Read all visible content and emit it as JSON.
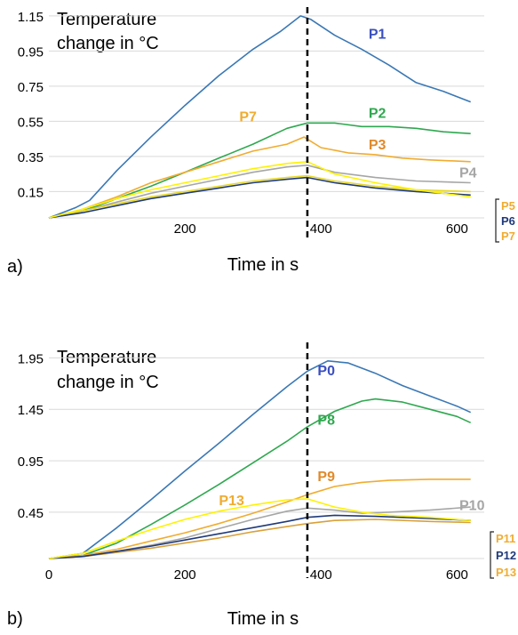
{
  "chart_data": [
    {
      "panel_label": "a)",
      "type": "line",
      "ylabel_lines": [
        "Temperature",
        "change in °C"
      ],
      "xlabel": "Time in s",
      "xlim": [
        0,
        640
      ],
      "ylim": [
        0,
        1.2
      ],
      "x_ticks": [
        200,
        400,
        600
      ],
      "y_ticks": [
        0.15,
        0.35,
        0.55,
        0.75,
        0.95,
        1.15
      ],
      "y_tick_labels": [
        "0.15",
        "0.35",
        "0.55",
        "0.75",
        "0.95",
        "1.15"
      ],
      "grid": "horizontal",
      "vline_x": 380,
      "series": [
        {
          "name": "P1",
          "color": "#3a78b5",
          "points": [
            [
              0,
              0
            ],
            [
              40,
              0.06
            ],
            [
              60,
              0.1
            ],
            [
              100,
              0.27
            ],
            [
              150,
              0.46
            ],
            [
              200,
              0.64
            ],
            [
              250,
              0.81
            ],
            [
              300,
              0.96
            ],
            [
              340,
              1.06
            ],
            [
              370,
              1.15
            ],
            [
              385,
              1.13
            ],
            [
              420,
              1.04
            ],
            [
              460,
              0.96
            ],
            [
              500,
              0.87
            ],
            [
              540,
              0.77
            ],
            [
              580,
              0.72
            ],
            [
              620,
              0.66
            ]
          ]
        },
        {
          "name": "P2",
          "color": "#2fa84f",
          "points": [
            [
              0,
              0
            ],
            [
              50,
              0.04
            ],
            [
              100,
              0.11
            ],
            [
              150,
              0.18
            ],
            [
              200,
              0.26
            ],
            [
              250,
              0.34
            ],
            [
              300,
              0.42
            ],
            [
              350,
              0.51
            ],
            [
              380,
              0.54
            ],
            [
              420,
              0.54
            ],
            [
              460,
              0.52
            ],
            [
              500,
              0.52
            ],
            [
              540,
              0.51
            ],
            [
              580,
              0.49
            ],
            [
              620,
              0.48
            ]
          ]
        },
        {
          "name": "P3",
          "color": "#f0ac30",
          "points": [
            [
              0,
              0
            ],
            [
              50,
              0.05
            ],
            [
              100,
              0.12
            ],
            [
              150,
              0.2
            ],
            [
              200,
              0.26
            ],
            [
              250,
              0.32
            ],
            [
              300,
              0.38
            ],
            [
              350,
              0.42
            ],
            [
              375,
              0.46
            ],
            [
              400,
              0.4
            ],
            [
              440,
              0.37
            ],
            [
              480,
              0.36
            ],
            [
              520,
              0.34
            ],
            [
              560,
              0.33
            ],
            [
              620,
              0.32
            ]
          ]
        },
        {
          "name": "P4",
          "color": "#a6a6a6",
          "points": [
            [
              0,
              0
            ],
            [
              50,
              0.04
            ],
            [
              100,
              0.09
            ],
            [
              150,
              0.14
            ],
            [
              200,
              0.18
            ],
            [
              250,
              0.22
            ],
            [
              300,
              0.26
            ],
            [
              350,
              0.29
            ],
            [
              380,
              0.3
            ],
            [
              420,
              0.26
            ],
            [
              480,
              0.23
            ],
            [
              540,
              0.21
            ],
            [
              620,
              0.2
            ]
          ]
        },
        {
          "name": "P5",
          "color": "#e7d82a",
          "points": [
            [
              0,
              0
            ],
            [
              50,
              0.04
            ],
            [
              100,
              0.08
            ],
            [
              150,
              0.12
            ],
            [
              200,
              0.15
            ],
            [
              250,
              0.18
            ],
            [
              300,
              0.21
            ],
            [
              350,
              0.23
            ],
            [
              380,
              0.24
            ],
            [
              420,
              0.21
            ],
            [
              480,
              0.18
            ],
            [
              540,
              0.16
            ],
            [
              620,
              0.15
            ]
          ]
        },
        {
          "name": "P6",
          "color": "#1f3a7a",
          "points": [
            [
              0,
              0
            ],
            [
              50,
              0.03
            ],
            [
              100,
              0.07
            ],
            [
              150,
              0.11
            ],
            [
              200,
              0.14
            ],
            [
              250,
              0.17
            ],
            [
              300,
              0.2
            ],
            [
              350,
              0.22
            ],
            [
              380,
              0.23
            ],
            [
              420,
              0.2
            ],
            [
              480,
              0.17
            ],
            [
              540,
              0.15
            ],
            [
              620,
              0.13
            ]
          ]
        },
        {
          "name": "P7",
          "color": "#fff200",
          "points": [
            [
              0,
              0
            ],
            [
              50,
              0.05
            ],
            [
              100,
              0.11
            ],
            [
              150,
              0.16
            ],
            [
              200,
              0.2
            ],
            [
              250,
              0.24
            ],
            [
              300,
              0.28
            ],
            [
              350,
              0.31
            ],
            [
              380,
              0.32
            ],
            [
              420,
              0.25
            ],
            [
              480,
              0.2
            ],
            [
              540,
              0.16
            ],
            [
              620,
              0.12
            ]
          ]
        }
      ],
      "series_labels": [
        {
          "text": "P1",
          "color": "#3a4fc0",
          "x": 470,
          "y": 1.02
        },
        {
          "text": "P2",
          "color": "#2fa84f",
          "x": 470,
          "y": 0.57
        },
        {
          "text": "P3",
          "color": "#e08a2a",
          "x": 470,
          "y": 0.39
        },
        {
          "text": "P4",
          "color": "#a6a6a6",
          "x": 640,
          "y": 0.23
        },
        {
          "text": "P7",
          "color": "#f0ac30",
          "x": 280,
          "y": 0.55
        }
      ],
      "bracket_labels": [
        {
          "text": "P5",
          "color": "#f0ac30"
        },
        {
          "text": "P6",
          "color": "#1f3a7a"
        },
        {
          "text": "P7",
          "color": "#f0ac30"
        }
      ]
    },
    {
      "panel_label": "b)",
      "type": "line",
      "ylabel_lines": [
        "Temperature",
        "change in °C"
      ],
      "xlabel": "Time in s",
      "xlim": [
        0,
        640
      ],
      "ylim": [
        0,
        2.1
      ],
      "x_ticks": [
        0,
        200,
        400,
        600
      ],
      "y_ticks": [
        0.45,
        0.95,
        1.45,
        1.95
      ],
      "y_tick_labels": [
        "0.45",
        "0.95",
        "1.45",
        "1.95"
      ],
      "grid": "horizontal",
      "vline_x": 380,
      "series": [
        {
          "name": "P0",
          "color": "#3a78b5",
          "points": [
            [
              0,
              0
            ],
            [
              50,
              0.05
            ],
            [
              100,
              0.3
            ],
            [
              150,
              0.57
            ],
            [
              200,
              0.85
            ],
            [
              250,
              1.12
            ],
            [
              300,
              1.4
            ],
            [
              350,
              1.67
            ],
            [
              380,
              1.82
            ],
            [
              410,
              1.92
            ],
            [
              440,
              1.9
            ],
            [
              480,
              1.8
            ],
            [
              520,
              1.68
            ],
            [
              560,
              1.58
            ],
            [
              600,
              1.48
            ],
            [
              620,
              1.42
            ]
          ]
        },
        {
          "name": "P8",
          "color": "#2fa84f",
          "points": [
            [
              0,
              0
            ],
            [
              50,
              0.03
            ],
            [
              100,
              0.15
            ],
            [
              150,
              0.33
            ],
            [
              200,
              0.52
            ],
            [
              250,
              0.72
            ],
            [
              300,
              0.93
            ],
            [
              350,
              1.14
            ],
            [
              380,
              1.28
            ],
            [
              420,
              1.43
            ],
            [
              460,
              1.53
            ],
            [
              480,
              1.55
            ],
            [
              520,
              1.52
            ],
            [
              560,
              1.45
            ],
            [
              600,
              1.38
            ],
            [
              620,
              1.32
            ]
          ]
        },
        {
          "name": "P9",
          "color": "#f0ac30",
          "points": [
            [
              0,
              0
            ],
            [
              50,
              0.03
            ],
            [
              100,
              0.09
            ],
            [
              150,
              0.17
            ],
            [
              200,
              0.25
            ],
            [
              250,
              0.34
            ],
            [
              300,
              0.44
            ],
            [
              350,
              0.55
            ],
            [
              380,
              0.62
            ],
            [
              420,
              0.7
            ],
            [
              460,
              0.74
            ],
            [
              500,
              0.76
            ],
            [
              560,
              0.77
            ],
            [
              620,
              0.77
            ]
          ]
        },
        {
          "name": "P10",
          "color": "#a6a6a6",
          "points": [
            [
              0,
              0
            ],
            [
              50,
              0.02
            ],
            [
              100,
              0.07
            ],
            [
              150,
              0.13
            ],
            [
              200,
              0.2
            ],
            [
              250,
              0.29
            ],
            [
              300,
              0.38
            ],
            [
              350,
              0.46
            ],
            [
              380,
              0.49
            ],
            [
              420,
              0.47
            ],
            [
              460,
              0.44
            ],
            [
              500,
              0.45
            ],
            [
              560,
              0.47
            ],
            [
              620,
              0.5
            ]
          ]
        },
        {
          "name": "P11",
          "color": "#d9a13a",
          "points": [
            [
              0,
              0
            ],
            [
              50,
              0.02
            ],
            [
              100,
              0.06
            ],
            [
              150,
              0.1
            ],
            [
              200,
              0.15
            ],
            [
              250,
              0.2
            ],
            [
              300,
              0.26
            ],
            [
              350,
              0.31
            ],
            [
              380,
              0.34
            ],
            [
              420,
              0.37
            ],
            [
              480,
              0.38
            ],
            [
              560,
              0.36
            ],
            [
              620,
              0.35
            ]
          ]
        },
        {
          "name": "P12",
          "color": "#1f3a7a",
          "points": [
            [
              0,
              0
            ],
            [
              50,
              0.02
            ],
            [
              100,
              0.07
            ],
            [
              150,
              0.12
            ],
            [
              200,
              0.18
            ],
            [
              250,
              0.24
            ],
            [
              300,
              0.3
            ],
            [
              350,
              0.36
            ],
            [
              380,
              0.4
            ],
            [
              420,
              0.42
            ],
            [
              480,
              0.41
            ],
            [
              560,
              0.39
            ],
            [
              620,
              0.37
            ]
          ]
        },
        {
          "name": "P13",
          "color": "#fff200",
          "points": [
            [
              0,
              0
            ],
            [
              50,
              0.05
            ],
            [
              100,
              0.17
            ],
            [
              150,
              0.28
            ],
            [
              200,
              0.38
            ],
            [
              250,
              0.46
            ],
            [
              300,
              0.52
            ],
            [
              350,
              0.57
            ],
            [
              380,
              0.58
            ],
            [
              420,
              0.5
            ],
            [
              460,
              0.45
            ],
            [
              500,
              0.42
            ],
            [
              560,
              0.4
            ],
            [
              620,
              0.37
            ]
          ]
        }
      ],
      "series_labels": [
        {
          "text": "P0",
          "color": "#3a4fc0",
          "x": 395,
          "y": 1.78
        },
        {
          "text": "P8",
          "color": "#2fa84f",
          "x": 395,
          "y": 1.3
        },
        {
          "text": "P9",
          "color": "#e08a2a",
          "x": 395,
          "y": 0.75
        },
        {
          "text": "P10",
          "color": "#a6a6a6",
          "x": 640,
          "y": 0.47
        },
        {
          "text": "P13",
          "color": "#f0ac30",
          "x": 250,
          "y": 0.52
        }
      ],
      "bracket_labels": [
        {
          "text": "P11",
          "color": "#f0ac30"
        },
        {
          "text": "P12",
          "color": "#1f3a7a"
        },
        {
          "text": "P13",
          "color": "#f0ac30"
        }
      ]
    }
  ]
}
